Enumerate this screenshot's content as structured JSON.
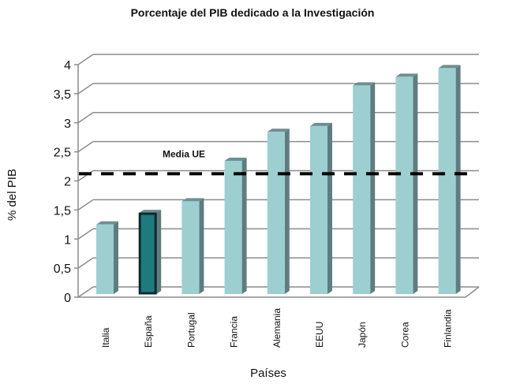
{
  "chart_data": {
    "type": "bar",
    "title": "Porcentaje del PIB dedicado a la Investigación",
    "xlabel": "Países",
    "ylabel": "% del PIB",
    "ylim": [
      0,
      4
    ],
    "yticks": [
      "0",
      "0,5",
      "1",
      "1,5",
      "2",
      "2,5",
      "3",
      "3,5",
      "4"
    ],
    "grid": true,
    "style": "3d-column",
    "categories": [
      "Italia",
      "España",
      "Portugal",
      "Francia",
      "Alemania",
      "EEUU",
      "Japón",
      "Corea",
      "Finlandia"
    ],
    "values": [
      1.2,
      1.4,
      1.6,
      2.3,
      2.8,
      2.9,
      3.6,
      3.75,
      3.9
    ],
    "highlighted_category": "España",
    "reference_line": {
      "label": "Media UE",
      "value": 2.05,
      "style": "dashed"
    },
    "colors": {
      "bar": "#9dcfd1",
      "bar_side": "#5f7d7e",
      "bar_top": "#6f8e8f",
      "highlight": "#1f7a7e",
      "highlight_border": "#0e2a2c",
      "grid": "#8c8c8c",
      "reference_line": "#000000"
    }
  }
}
